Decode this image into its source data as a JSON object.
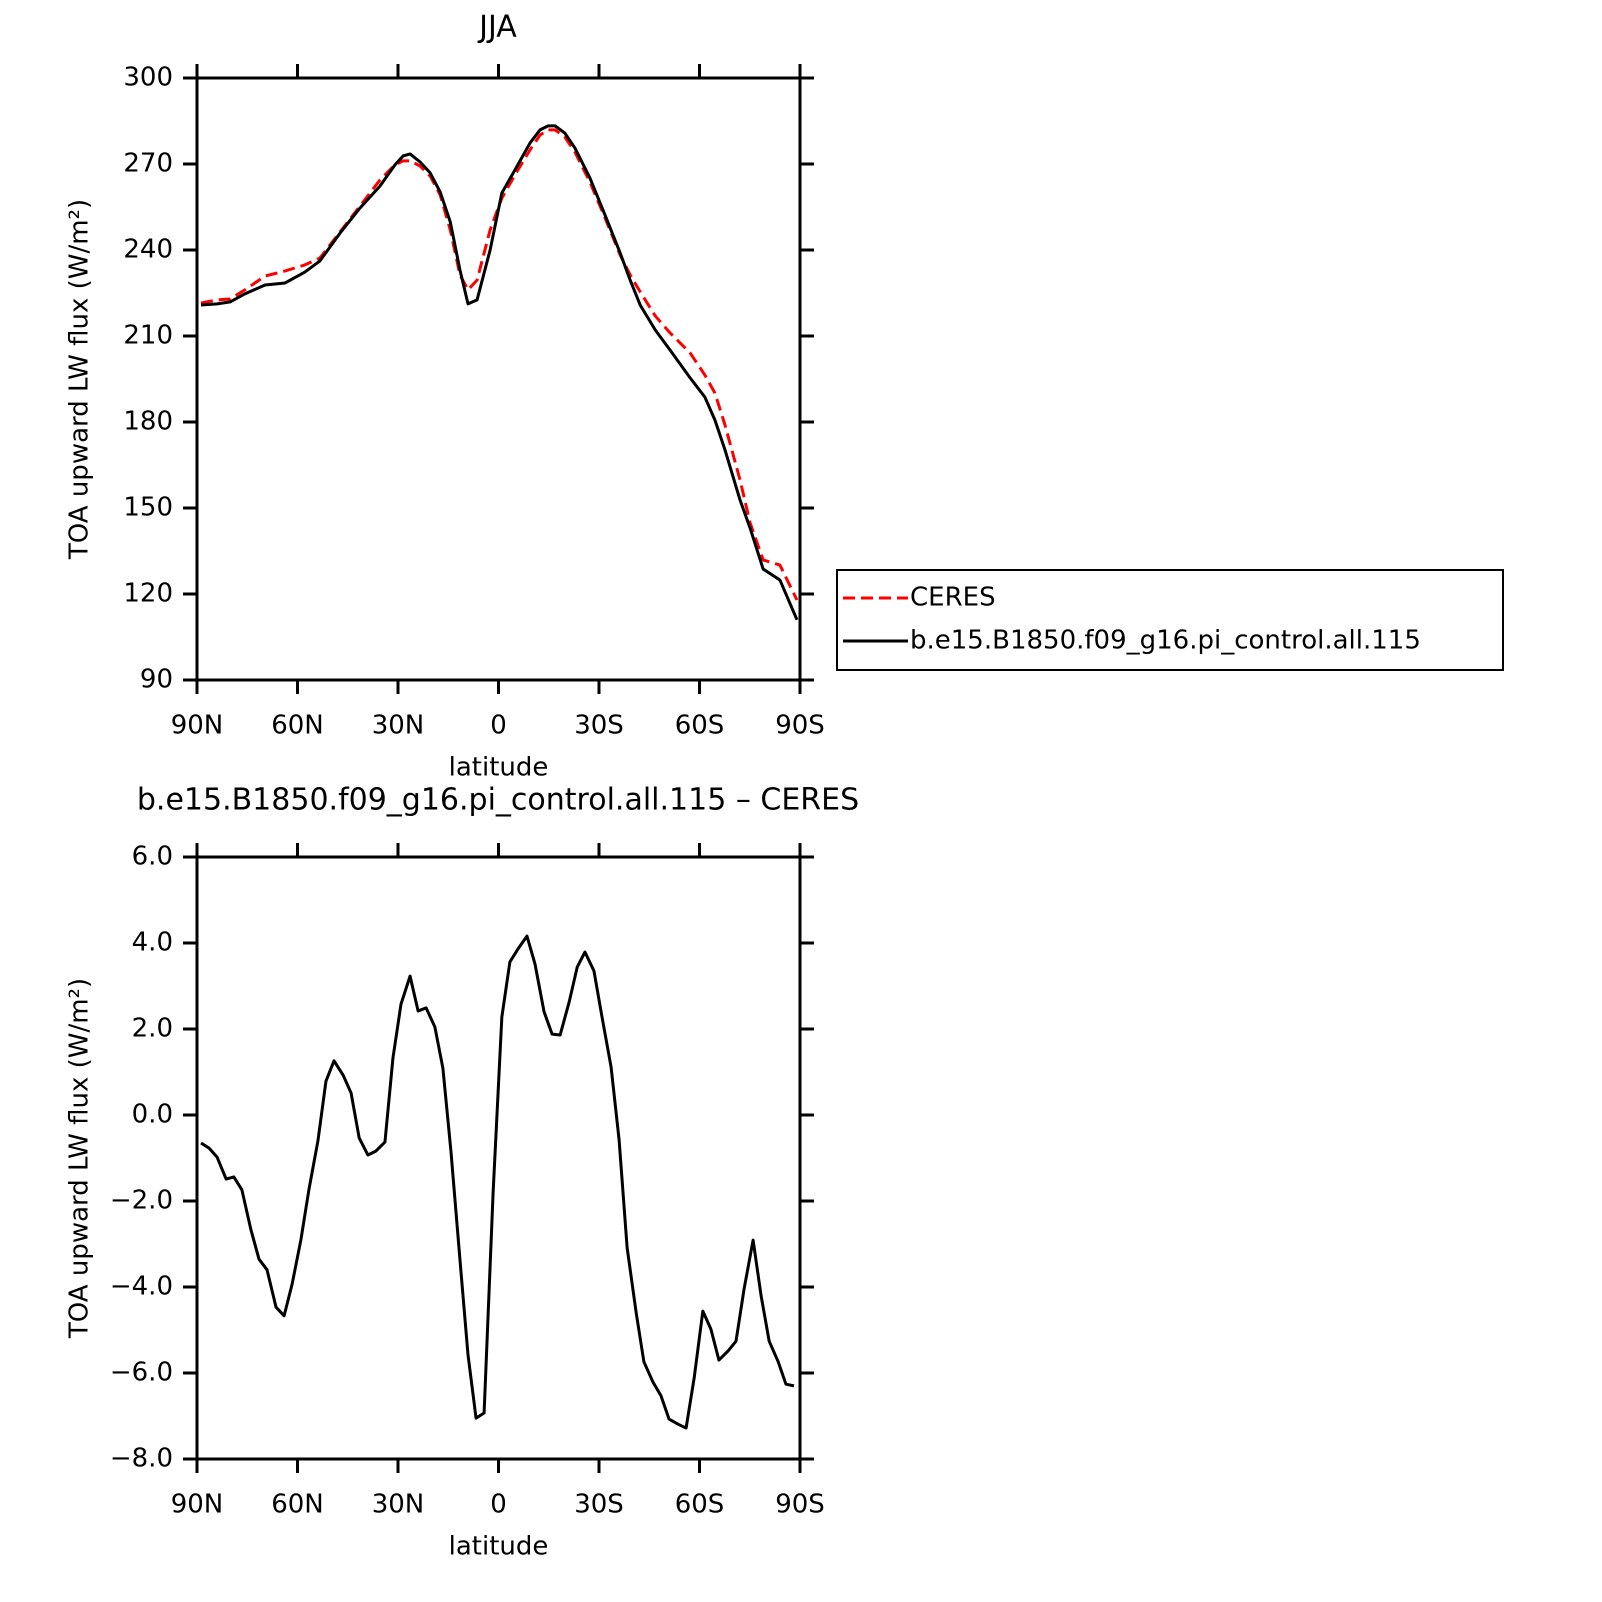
{
  "chart_data": [
    {
      "type": "line",
      "title": "JJA",
      "xlabel": "latitude",
      "ylabel": "TOA upward LW flux (W/m²)",
      "xlim": [
        90,
        -90
      ],
      "xticks": [
        {
          "value": 90,
          "label": "90N"
        },
        {
          "value": 60,
          "label": "60N"
        },
        {
          "value": 30,
          "label": "30N"
        },
        0,
        {
          "value": -30,
          "label": "30S"
        },
        {
          "value": -60,
          "label": "60S"
        },
        {
          "value": -90,
          "label": "90S"
        }
      ],
      "ylim": [
        90,
        300
      ],
      "yticks": [
        90,
        120,
        150,
        180,
        210,
        240,
        270,
        300
      ],
      "legend": "right",
      "x": [
        88.8,
        84.0,
        80.1,
        75.7,
        69.7,
        63.7,
        57.8,
        53.3,
        47.3,
        41.3,
        35.4,
        30.9,
        28.5,
        26.4,
        23.4,
        20.4,
        17.4,
        14.4,
        11.5,
        9.1,
        6.4,
        2.5,
        -1.0,
        -4.9,
        -9.4,
        -12.4,
        -14.8,
        -16.9,
        -19.8,
        -22.8,
        -27.3,
        -31.8,
        -36.3,
        -39.3,
        -42.3,
        -46.8,
        -51.2,
        -57.2,
        -61.6,
        -64.6,
        -67.6,
        -72.1,
        -75.1,
        -79.0,
        -84.0,
        -89.1
      ],
      "series": [
        {
          "name": "CERES",
          "color": "#ff0000",
          "line_style": "dashed",
          "values": [
            221.5,
            222.6,
            222.9,
            226.1,
            230.9,
            232.7,
            234.8,
            237.2,
            246.3,
            255.4,
            264.4,
            269.7,
            271.1,
            271.1,
            269.3,
            265.8,
            259.2,
            247.0,
            231.3,
            226.1,
            229.5,
            247.0,
            258.1,
            266.2,
            274.9,
            280.1,
            281.9,
            281.9,
            279.4,
            274.2,
            263.7,
            251.2,
            238.3,
            231.3,
            225.4,
            217.0,
            211.1,
            204.1,
            196.4,
            190.1,
            179.0,
            159.8,
            144.8,
            131.9,
            130.1,
            117.9
          ]
        },
        {
          "name": "b.e15.B1850.f09_g16.pi_control.all.115",
          "color": "#000000",
          "line_style": "solid",
          "values": [
            220.8,
            221.2,
            221.9,
            224.7,
            227.8,
            228.5,
            232.3,
            236.2,
            245.9,
            254.7,
            262.3,
            269.7,
            272.8,
            273.5,
            270.7,
            266.9,
            260.2,
            249.8,
            233.0,
            221.2,
            222.6,
            240.0,
            259.9,
            267.9,
            277.3,
            281.9,
            283.3,
            283.3,
            280.8,
            275.6,
            265.1,
            252.2,
            239.0,
            229.5,
            220.8,
            212.1,
            205.1,
            195.4,
            188.7,
            180.7,
            170.3,
            152.8,
            143.0,
            128.7,
            124.9,
            111.0
          ]
        }
      ]
    },
    {
      "type": "line",
      "title": "b.e15.B1850.f09_g16.pi_control.all.115 – CERES",
      "xlabel": "latitude",
      "ylabel": "TOA upward LW flux (W/m²)",
      "xlim": [
        90,
        -90
      ],
      "xticks": [
        {
          "value": 90,
          "label": "90N"
        },
        {
          "value": 60,
          "label": "60N"
        },
        {
          "value": 30,
          "label": "30N"
        },
        0,
        {
          "value": -30,
          "label": "30S"
        },
        {
          "value": -60,
          "label": "60S"
        },
        {
          "value": -90,
          "label": "90S"
        }
      ],
      "ylim": [
        -8,
        6
      ],
      "yticks": [
        {
          "value": -8,
          "label": "−8.0"
        },
        {
          "value": -6,
          "label": "−6.0"
        },
        {
          "value": -4,
          "label": "−4.0"
        },
        {
          "value": -2,
          "label": "−2.0"
        },
        {
          "value": 0,
          "label": "0.0"
        },
        {
          "value": 2,
          "label": "2.0"
        },
        {
          "value": 4,
          "label": "4.0"
        },
        {
          "value": 6,
          "label": "6.0"
        }
      ],
      "color": "#000000",
      "x": [
        88.8,
        86.4,
        84.0,
        81.3,
        79.0,
        76.6,
        73.9,
        71.5,
        69.1,
        66.4,
        64.0,
        61.6,
        59.0,
        56.6,
        53.9,
        51.5,
        49.1,
        46.4,
        44.0,
        41.6,
        39.0,
        36.6,
        33.9,
        31.5,
        29.1,
        26.4,
        24.0,
        21.6,
        19.0,
        16.6,
        14.2,
        11.5,
        9.1,
        6.7,
        4.3,
        1.6,
        -1.0,
        -3.4,
        -5.8,
        -8.5,
        -10.9,
        -13.6,
        -16.0,
        -18.4,
        -21.1,
        -23.5,
        -25.8,
        -28.5,
        -30.9,
        -33.6,
        -36.0,
        -38.4,
        -41.1,
        -43.4,
        -46.1,
        -48.5,
        -50.9,
        -53.6,
        -56.0,
        -58.4,
        -61.0,
        -63.4,
        -65.8,
        -68.5,
        -70.9,
        -73.3,
        -76.0,
        -78.4,
        -80.8,
        -83.5,
        -85.8,
        -88.2
      ],
      "values": [
        -0.65,
        -0.77,
        -0.98,
        -1.49,
        -1.44,
        -1.74,
        -2.67,
        -3.35,
        -3.6,
        -4.47,
        -4.67,
        -3.93,
        -2.91,
        -1.74,
        -0.6,
        0.79,
        1.26,
        0.93,
        0.51,
        -0.53,
        -0.93,
        -0.84,
        -0.63,
        1.33,
        2.58,
        3.23,
        2.42,
        2.49,
        2.05,
        1.09,
        -0.84,
        -3.37,
        -5.58,
        -7.05,
        -6.93,
        -1.79,
        2.28,
        3.56,
        3.86,
        4.16,
        3.51,
        2.4,
        1.88,
        1.86,
        2.63,
        3.44,
        3.79,
        3.35,
        2.28,
        1.12,
        -0.58,
        -3.09,
        -4.6,
        -5.74,
        -6.21,
        -6.53,
        -7.07,
        -7.19,
        -7.28,
        -6.12,
        -4.56,
        -4.98,
        -5.7,
        -5.49,
        -5.26,
        -4.05,
        -2.91,
        -4.21,
        -5.26,
        -5.74,
        -6.26,
        -6.3
      ]
    }
  ]
}
